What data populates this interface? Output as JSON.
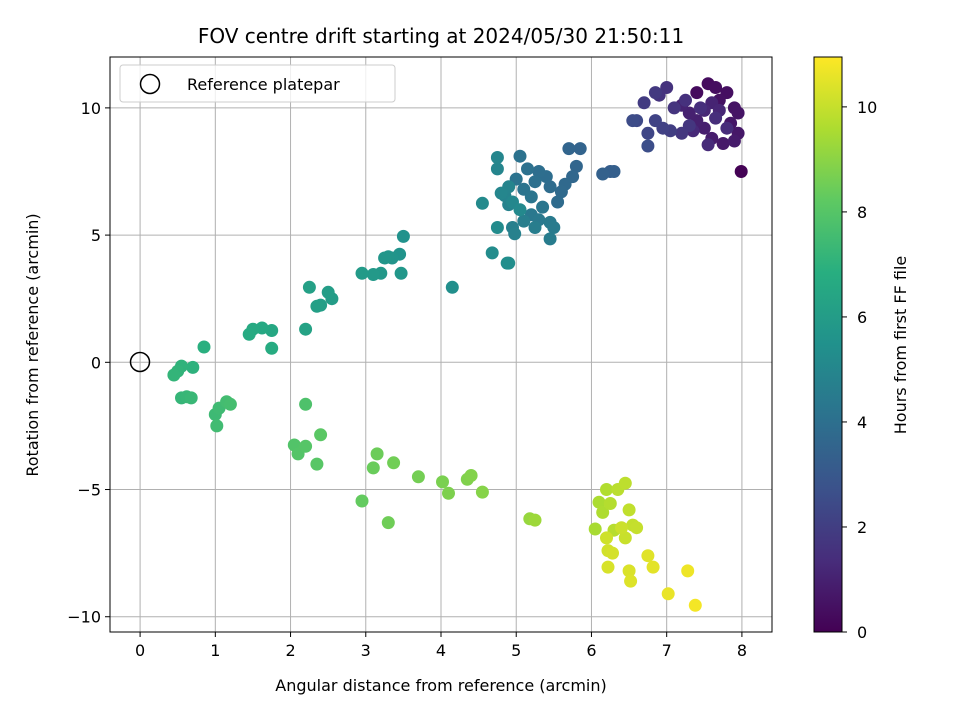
{
  "chart_data": {
    "type": "scatter",
    "title": "FOV centre drift starting at 2024/05/30 21:50:11",
    "xlabel": "Angular distance from reference (arcmin)",
    "ylabel": "Rotation from reference (arcmin)",
    "colorbar_label": "Hours from first FF file",
    "colormap": "viridis",
    "xlim": [
      -0.4,
      8.4
    ],
    "ylim": [
      -10.6,
      12.0
    ],
    "xticks": [
      0,
      1,
      2,
      3,
      4,
      5,
      6,
      7,
      8
    ],
    "xtick_labels": [
      "0",
      "1",
      "2",
      "3",
      "4",
      "5",
      "6",
      "7",
      "8"
    ],
    "yticks": [
      -10,
      -5,
      0,
      5,
      10
    ],
    "ytick_labels": [
      "−10",
      "−5",
      "0",
      "5",
      "10"
    ],
    "clim": [
      0,
      10.95
    ],
    "cticks": [
      0,
      2,
      4,
      6,
      8,
      10
    ],
    "ctick_labels": [
      "0",
      "2",
      "4",
      "6",
      "8",
      "10"
    ],
    "grid": true,
    "legend": {
      "placement": "top-left",
      "entries": [
        "Reference platepar"
      ]
    },
    "reference_point": {
      "x": 0,
      "y": 0
    },
    "series": [
      {
        "columns": [
          "x",
          "y",
          "hours"
        ],
        "points": [
          [
            7.99,
            7.5,
            0.05
          ],
          [
            7.4,
            10.6,
            0.3
          ],
          [
            7.55,
            10.95,
            0.35
          ],
          [
            7.65,
            10.8,
            0.4
          ],
          [
            7.8,
            10.6,
            0.45
          ],
          [
            7.7,
            10.3,
            0.5
          ],
          [
            7.9,
            10.0,
            0.55
          ],
          [
            7.95,
            9.8,
            0.6
          ],
          [
            7.85,
            9.4,
            0.65
          ],
          [
            7.95,
            9.0,
            0.7
          ],
          [
            7.75,
            8.6,
            0.75
          ],
          [
            7.9,
            8.7,
            0.8
          ],
          [
            7.6,
            8.8,
            0.85
          ],
          [
            7.5,
            9.2,
            0.9
          ],
          [
            7.4,
            9.5,
            0.95
          ],
          [
            7.3,
            9.8,
            1.0
          ],
          [
            7.2,
            10.1,
            1.05
          ],
          [
            7.6,
            10.2,
            1.1
          ],
          [
            7.7,
            9.9,
            1.15
          ],
          [
            7.5,
            9.9,
            1.2
          ],
          [
            7.35,
            9.1,
            1.25
          ],
          [
            7.55,
            8.55,
            1.3
          ],
          [
            7.8,
            9.2,
            1.35
          ],
          [
            7.65,
            9.6,
            1.4
          ],
          [
            7.45,
            10.0,
            1.45
          ],
          [
            7.25,
            10.3,
            1.5
          ],
          [
            7.0,
            10.8,
            1.55
          ],
          [
            6.9,
            10.5,
            1.6
          ],
          [
            7.1,
            10.0,
            1.65
          ],
          [
            7.3,
            9.3,
            1.7
          ],
          [
            7.2,
            9.0,
            1.75
          ],
          [
            6.85,
            10.6,
            1.8
          ],
          [
            6.7,
            10.2,
            1.9
          ],
          [
            7.05,
            9.1,
            2.0
          ],
          [
            6.95,
            9.2,
            2.1
          ],
          [
            6.85,
            9.5,
            2.2
          ],
          [
            6.75,
            9.0,
            2.3
          ],
          [
            6.6,
            9.5,
            2.4
          ],
          [
            6.55,
            9.5,
            2.5
          ],
          [
            6.75,
            8.5,
            2.6
          ],
          [
            6.25,
            7.5,
            3.2
          ],
          [
            6.3,
            7.5,
            3.3
          ],
          [
            6.15,
            7.4,
            3.4
          ],
          [
            5.85,
            8.4,
            3.5
          ],
          [
            5.7,
            8.4,
            3.55
          ],
          [
            5.8,
            7.7,
            3.6
          ],
          [
            5.75,
            7.3,
            3.65
          ],
          [
            5.65,
            7.0,
            3.7
          ],
          [
            5.6,
            6.7,
            3.75
          ],
          [
            5.55,
            6.3,
            3.8
          ],
          [
            5.45,
            6.9,
            3.85
          ],
          [
            5.4,
            7.3,
            3.9
          ],
          [
            5.3,
            7.5,
            3.95
          ],
          [
            5.25,
            7.1,
            4.0
          ],
          [
            5.15,
            7.6,
            4.05
          ],
          [
            5.05,
            8.1,
            4.1
          ],
          [
            5.0,
            7.2,
            4.15
          ],
          [
            5.1,
            6.8,
            4.2
          ],
          [
            5.2,
            6.5,
            4.25
          ],
          [
            5.35,
            6.1,
            4.3
          ],
          [
            5.2,
            5.8,
            4.35
          ],
          [
            5.3,
            5.6,
            4.4
          ],
          [
            5.45,
            5.5,
            4.45
          ],
          [
            5.5,
            5.3,
            4.5
          ],
          [
            5.45,
            4.85,
            4.55
          ],
          [
            5.25,
            5.3,
            4.6
          ],
          [
            5.1,
            5.55,
            4.65
          ],
          [
            4.95,
            5.3,
            4.7
          ],
          [
            4.98,
            5.05,
            4.75
          ],
          [
            4.9,
            6.2,
            4.8
          ],
          [
            4.85,
            6.55,
            4.85
          ],
          [
            4.9,
            6.9,
            4.9
          ],
          [
            4.75,
            7.6,
            4.95
          ],
          [
            4.75,
            8.05,
            5.0
          ],
          [
            4.8,
            6.65,
            5.0
          ],
          [
            4.95,
            6.3,
            5.05
          ],
          [
            5.05,
            6.0,
            5.1
          ],
          [
            4.55,
            6.25,
            5.15
          ],
          [
            4.75,
            5.3,
            5.2
          ],
          [
            4.68,
            4.3,
            5.25
          ],
          [
            4.88,
            3.9,
            5.3
          ],
          [
            4.9,
            3.9,
            5.35
          ],
          [
            4.15,
            2.95,
            5.4
          ],
          [
            3.5,
            4.95,
            5.5
          ],
          [
            3.45,
            4.25,
            5.55
          ],
          [
            3.35,
            4.1,
            5.6
          ],
          [
            3.3,
            4.15,
            5.65
          ],
          [
            3.25,
            4.1,
            5.7
          ],
          [
            3.47,
            3.5,
            5.75
          ],
          [
            3.2,
            3.5,
            5.8
          ],
          [
            3.1,
            3.45,
            5.85
          ],
          [
            2.95,
            3.5,
            5.9
          ],
          [
            2.55,
            2.5,
            6.0
          ],
          [
            2.5,
            2.75,
            6.05
          ],
          [
            2.4,
            2.25,
            6.1
          ],
          [
            2.35,
            2.2,
            6.15
          ],
          [
            2.25,
            2.95,
            6.2
          ],
          [
            2.2,
            1.3,
            6.3
          ],
          [
            1.75,
            1.25,
            6.5
          ],
          [
            1.62,
            1.35,
            6.55
          ],
          [
            1.5,
            1.3,
            6.6
          ],
          [
            1.45,
            1.1,
            6.65
          ],
          [
            1.75,
            0.55,
            6.7
          ],
          [
            0.85,
            0.6,
            6.9
          ],
          [
            0.7,
            -0.2,
            7.0
          ],
          [
            0.55,
            -0.15,
            7.05
          ],
          [
            0.5,
            -0.35,
            7.1
          ],
          [
            0.45,
            -0.5,
            7.15
          ],
          [
            0.55,
            -1.4,
            7.2
          ],
          [
            0.62,
            -1.35,
            7.25
          ],
          [
            0.68,
            -1.4,
            7.3
          ],
          [
            1.0,
            -2.05,
            7.4
          ],
          [
            1.05,
            -1.8,
            7.45
          ],
          [
            1.02,
            -2.5,
            7.5
          ],
          [
            1.15,
            -1.55,
            7.55
          ],
          [
            1.2,
            -1.65,
            7.6
          ],
          [
            2.2,
            -1.65,
            7.8
          ],
          [
            2.05,
            -3.25,
            7.9
          ],
          [
            2.1,
            -3.6,
            7.95
          ],
          [
            2.2,
            -3.3,
            8.0
          ],
          [
            2.35,
            -4.0,
            8.05
          ],
          [
            2.4,
            -2.85,
            8.1
          ],
          [
            2.95,
            -5.45,
            8.3
          ],
          [
            3.1,
            -4.15,
            8.4
          ],
          [
            3.15,
            -3.6,
            8.45
          ],
          [
            3.3,
            -6.3,
            8.5
          ],
          [
            3.37,
            -3.95,
            8.55
          ],
          [
            3.7,
            -4.5,
            8.6
          ],
          [
            4.02,
            -4.7,
            8.7
          ],
          [
            4.1,
            -5.15,
            8.75
          ],
          [
            4.35,
            -4.6,
            8.8
          ],
          [
            4.4,
            -4.45,
            8.85
          ],
          [
            4.55,
            -5.1,
            8.9
          ],
          [
            5.18,
            -6.15,
            9.2
          ],
          [
            5.25,
            -6.2,
            9.3
          ],
          [
            6.05,
            -6.55,
            9.5
          ],
          [
            6.1,
            -5.5,
            9.55
          ],
          [
            6.15,
            -5.9,
            9.6
          ],
          [
            6.2,
            -5.0,
            9.65
          ],
          [
            6.25,
            -5.55,
            9.7
          ],
          [
            6.3,
            -6.6,
            9.75
          ],
          [
            6.35,
            -5.0,
            9.8
          ],
          [
            6.45,
            -4.75,
            9.85
          ],
          [
            6.5,
            -5.8,
            9.9
          ],
          [
            6.55,
            -6.4,
            9.95
          ],
          [
            6.6,
            -6.5,
            10.0
          ],
          [
            6.45,
            -6.9,
            10.05
          ],
          [
            6.4,
            -6.5,
            10.1
          ],
          [
            6.2,
            -6.9,
            10.15
          ],
          [
            6.22,
            -7.4,
            10.2
          ],
          [
            6.28,
            -7.5,
            10.25
          ],
          [
            6.22,
            -8.05,
            10.3
          ],
          [
            6.5,
            -8.2,
            10.35
          ],
          [
            6.52,
            -8.6,
            10.4
          ],
          [
            6.75,
            -7.6,
            10.45
          ],
          [
            6.82,
            -8.05,
            10.5
          ],
          [
            7.02,
            -9.1,
            10.6
          ],
          [
            7.28,
            -8.2,
            10.7
          ],
          [
            7.38,
            -9.55,
            10.8
          ]
        ]
      }
    ]
  }
}
